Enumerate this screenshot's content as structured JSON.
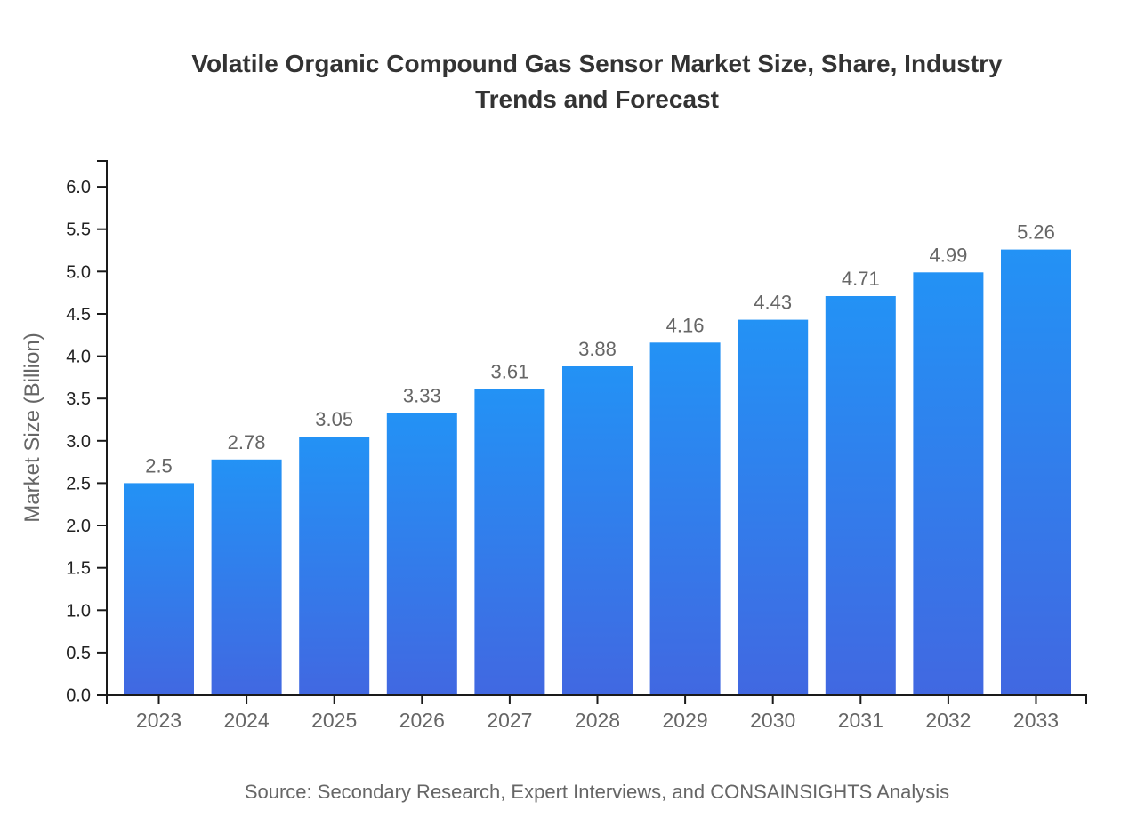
{
  "header": {
    "title": "Volatile Organic Compound Gas Sensor Market Size, Share, Industry Trends and Forecast"
  },
  "footer": {
    "source": "Source: Secondary Research, Expert Interviews, and CONSAINSIGHTS Analysis"
  },
  "chart_data": {
    "type": "bar",
    "title": "Volatile Organic Compound Gas Sensor Market Size, Share, Industry Trends and Forecast",
    "categories": [
      "2023",
      "2024",
      "2025",
      "2026",
      "2027",
      "2028",
      "2029",
      "2030",
      "2031",
      "2032",
      "2033"
    ],
    "values": [
      2.5,
      2.78,
      3.05,
      3.33,
      3.61,
      3.88,
      4.16,
      4.43,
      4.71,
      4.99,
      5.26
    ],
    "value_labels": [
      "2.5",
      "2.78",
      "3.05",
      "3.33",
      "3.61",
      "3.88",
      "4.16",
      "4.43",
      "4.71",
      "4.99",
      "5.26"
    ],
    "xlabel": "",
    "ylabel": "Market Size (Billion)",
    "ylim": [
      0,
      6.3
    ],
    "yticks": [
      0.0,
      0.5,
      1.0,
      1.5,
      2.0,
      2.5,
      3.0,
      3.5,
      4.0,
      4.5,
      5.0,
      5.5,
      6.0
    ],
    "ytick_labels": [
      "0.0",
      "0.5",
      "1.0",
      "1.5",
      "2.0",
      "2.5",
      "3.0",
      "3.5",
      "4.0",
      "4.5",
      "5.0",
      "5.5",
      "6.0"
    ],
    "grid": false,
    "legend": "none",
    "bar_gradient_top": "#2392F5",
    "bar_gradient_bottom": "#4168E1",
    "axis_color": "#1a1a1a",
    "ytick_label_color": "#222222",
    "category_label_color": "#666666",
    "value_label_color": "#666666",
    "source": "Source: Secondary Research, Expert Interviews, and CONSAINSIGHTS Analysis"
  }
}
